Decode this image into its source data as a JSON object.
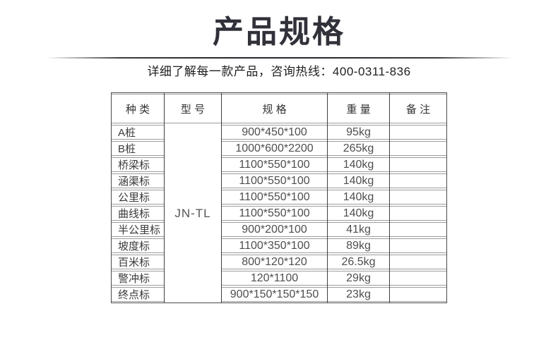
{
  "page": {
    "title": "产品规格",
    "subtitle": "详细了解每一款产品，咨询热线：400-0311-836",
    "hotline": "400-0311-836"
  },
  "table": {
    "headers": [
      "种 类",
      "型 号",
      "规 格",
      "重 量",
      "备 注"
    ],
    "model": "JN-TL",
    "rows": [
      {
        "kind": "A桩",
        "spec": "900*450*100",
        "weight": "95kg",
        "note": ""
      },
      {
        "kind": "B桩",
        "spec": "1000*600*2200",
        "weight": "265kg",
        "note": ""
      },
      {
        "kind": "桥梁标",
        "spec": "1100*550*100",
        "weight": "140kg",
        "note": ""
      },
      {
        "kind": "涵渠标",
        "spec": "1100*550*100",
        "weight": "140kg",
        "note": ""
      },
      {
        "kind": "公里标",
        "spec": "1100*550*100",
        "weight": "140kg",
        "note": ""
      },
      {
        "kind": "曲线标",
        "spec": "1100*550*100",
        "weight": "140kg",
        "note": ""
      },
      {
        "kind": "半公里标",
        "spec": "900*200*100",
        "weight": "41kg",
        "note": ""
      },
      {
        "kind": "坡度标",
        "spec": "1100*350*100",
        "weight": "89kg",
        "note": ""
      },
      {
        "kind": "百米标",
        "spec": "800*120*120",
        "weight": "26.5kg",
        "note": ""
      },
      {
        "kind": "警冲标",
        "spec": "120*1100",
        "weight": "29kg",
        "note": ""
      },
      {
        "kind": "终点标",
        "spec": "900*150*150*150",
        "weight": "23kg",
        "note": ""
      }
    ]
  },
  "colors": {
    "title_text": "#31313a",
    "subtitle_text": "#1e1e1e",
    "table_outer_border": "#4a4a4a",
    "column_divider": "#3f3f3f",
    "row_line": "#9c9c9c",
    "header_text": "#333333",
    "value_text": "#4e4e4e",
    "background": "#ffffff"
  }
}
